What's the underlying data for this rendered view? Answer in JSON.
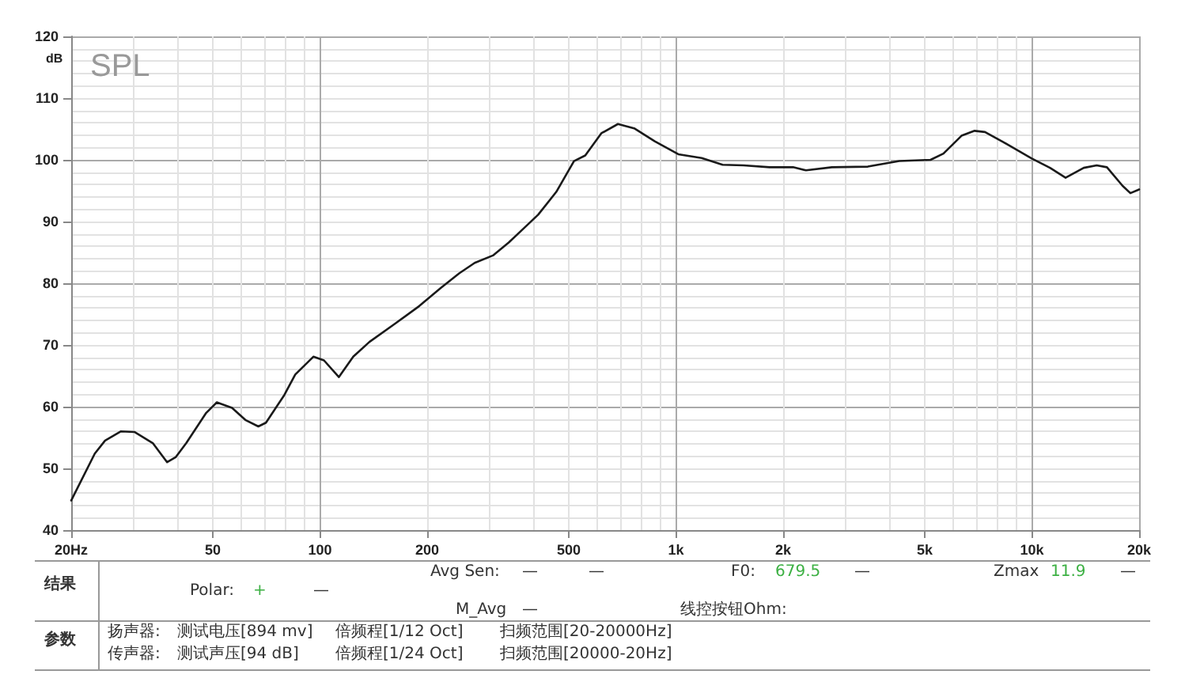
{
  "chart_data": {
    "type": "line",
    "title": "SPL",
    "ylabel": "dB",
    "x": [
      20,
      23.3,
      24.9,
      27.6,
      30.1,
      33.9,
      37.2,
      39.3,
      42.1,
      47.9,
      51.3,
      56.6,
      61.9,
      67.1,
      70.5,
      79.4,
      85.2,
      95.8,
      102.6,
      113,
      124,
      137.7,
      162,
      190,
      218,
      246,
      272,
      306,
      339,
      369,
      410,
      461,
      517,
      556,
      617,
      687,
      763,
      872,
      1015,
      1181,
      1352,
      1548,
      1832,
      2133,
      2319,
      2742,
      3459,
      4240,
      5190,
      5640,
      6340,
      6900,
      7380,
      8290,
      9990,
      11240,
      12430,
      13980,
      15200,
      16240,
      17960,
      18900,
      20000
    ],
    "values": [
      44.8,
      52.4,
      54.5,
      56,
      55.9,
      54.1,
      51,
      51.8,
      54.1,
      59,
      60.7,
      59.8,
      57.8,
      56.8,
      57.4,
      61.9,
      65.2,
      68.1,
      67.5,
      64.8,
      68.1,
      70.5,
      73.4,
      76.3,
      79.2,
      81.6,
      83.3,
      84.5,
      86.6,
      88.6,
      91.1,
      94.8,
      99.8,
      100.7,
      104.3,
      105.8,
      105.1,
      103,
      100.9,
      100.3,
      99.2,
      99.1,
      98.8,
      98.8,
      98.3,
      98.8,
      98.9,
      99.8,
      100,
      101,
      103.9,
      104.7,
      104.5,
      102.9,
      100.2,
      98.7,
      97.1,
      98.7,
      99.1,
      98.8,
      95.8,
      94.6,
      95.2
    ],
    "color": "#1a1a1a",
    "log": "x",
    "xlim": [
      20,
      20000
    ],
    "xticks": [
      {
        "value": 20,
        "label": "20Hz"
      },
      50,
      100,
      200,
      500,
      {
        "value": 1000,
        "label": "1k"
      },
      {
        "value": 2000,
        "label": "2k"
      },
      {
        "value": 5000,
        "label": "5k"
      },
      {
        "value": 10000,
        "label": "10k"
      },
      {
        "value": 20000,
        "label": "20k"
      }
    ],
    "ylim": [
      40,
      120
    ],
    "yticks": [
      40,
      50,
      60,
      70,
      80,
      90,
      100,
      110,
      120
    ],
    "grid": true,
    "marker": "none",
    "line_style": "solid",
    "annotations": [
      "结果",
      "Avg Sen:",
      "—",
      "—",
      "F0:",
      "679.5",
      "—",
      "Zmax",
      "11.9",
      "—",
      "Polar:",
      "+",
      "—",
      "M_Avg",
      "—",
      "线控按钮Ohm:",
      "参数",
      "扬声器:",
      "测试电压[894 mv]",
      "倍频程[1/12 Oct]",
      "扫频范围[20-20000Hz]",
      "传声器:",
      "测试声压[94 dB]",
      "倍频程[1/24 Oct]",
      "扫频范围[20000-20Hz]"
    ]
  }
}
